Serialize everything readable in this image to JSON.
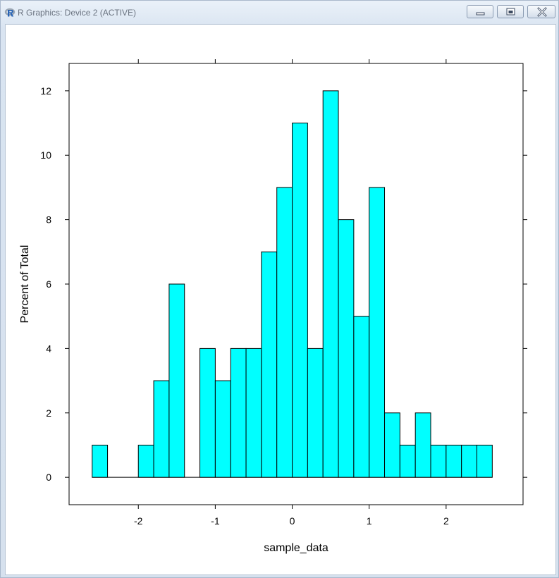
{
  "window": {
    "title": "R Graphics: Device 2 (ACTIVE)",
    "icons": {
      "app": "r-logo-icon",
      "minimize": "minimize-icon",
      "maximize": "maximize-icon",
      "close": "close-icon"
    }
  },
  "chart_data": {
    "type": "bar",
    "subtype": "histogram",
    "title": "",
    "xlabel": "sample_data",
    "ylabel": "Percent of Total",
    "bar_color": "#00ffff",
    "bar_edge_color": "#000000",
    "bin_edges": [
      -2.6,
      -2.4,
      -2.2,
      -2.0,
      -1.8,
      -1.6,
      -1.4,
      -1.2,
      -1.0,
      -0.8,
      -0.6,
      -0.4,
      -0.2,
      0.0,
      0.2,
      0.4,
      0.6,
      0.8,
      1.0,
      1.2,
      1.4,
      1.6,
      1.8,
      2.0,
      2.2,
      2.4,
      2.6
    ],
    "values": [
      1,
      0,
      0,
      1,
      3,
      6,
      0,
      4,
      3,
      4,
      4,
      7,
      9,
      11,
      4,
      12,
      8,
      5,
      9,
      2,
      1,
      2,
      1,
      1,
      1,
      1
    ],
    "xlim": [
      -2.9,
      3.0
    ],
    "ylim": [
      -0.85,
      12.85
    ],
    "xticks": [
      -2,
      -1,
      0,
      1,
      2
    ],
    "yticks": [
      0,
      2,
      4,
      6,
      8,
      10,
      12
    ],
    "xtick_labels": [
      "-2",
      "-1",
      "0",
      "1",
      "2"
    ],
    "ytick_labels": [
      "0",
      "2",
      "4",
      "6",
      "8",
      "10",
      "12"
    ],
    "grid": false,
    "legend": "none"
  }
}
